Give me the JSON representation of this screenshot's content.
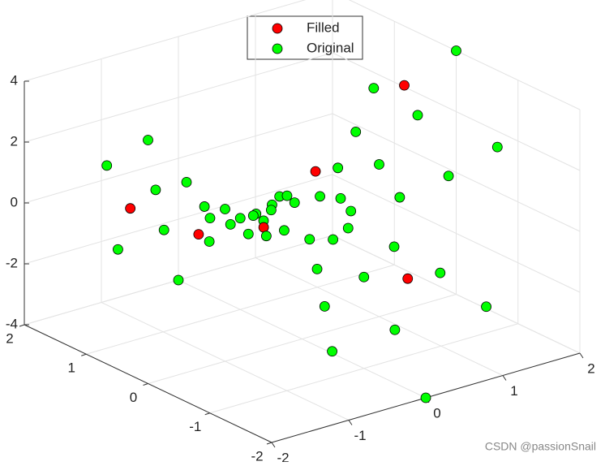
{
  "chart_data": {
    "type": "scatter3d",
    "xlim": [
      -2,
      2
    ],
    "ylim": [
      -2,
      2
    ],
    "zlim": [
      -4,
      4
    ],
    "xticks": [
      -2,
      -1,
      0,
      1,
      2
    ],
    "yticks": [
      -2,
      -1,
      0,
      1,
      2
    ],
    "zticks": [
      -4,
      -2,
      0,
      2,
      4
    ],
    "grid": true,
    "legend": "top",
    "watermark": "CSDN @passionSnail",
    "series": [
      {
        "name": "Filled",
        "color": "#ff0000",
        "x": [
          0.884,
          1.69,
          -0.705,
          -1.237,
          0.428,
          -0.3
        ],
        "y": [
          0.884,
          0.453,
          -0.257,
          1.237,
          -1.175,
          1.3
        ],
        "z": [
          0,
          2.652,
          0.431,
          0,
          -1.197,
          -1.6
        ]
      },
      {
        "name": "Original",
        "color": "#00ff00",
        "x": [
          0.5,
          0.433,
          0.25,
          0,
          -0.25,
          -0.433,
          -0.5,
          -0.433,
          -0.25,
          0,
          0.25,
          0.433,
          1,
          0.866,
          0.5,
          0,
          -0.5,
          -0.866,
          -1,
          -0.866,
          -0.5,
          0,
          0.5,
          0.866,
          1.5,
          1.299,
          0.75,
          0,
          -0.75,
          -1.299,
          -1.5,
          -1.299,
          -0.75,
          0,
          0.75,
          1.299,
          2,
          1.732,
          1,
          0,
          -1,
          -1.732,
          -2,
          -1.732,
          -1,
          0,
          1,
          1.732
        ],
        "y": [
          0,
          0.25,
          0.433,
          0.5,
          0.433,
          0.25,
          0,
          -0.25,
          -0.433,
          -0.5,
          -0.433,
          -0.25,
          0,
          0.5,
          0.866,
          1,
          0.866,
          0.5,
          0,
          -0.5,
          -0.866,
          -1,
          -0.866,
          -0.5,
          0,
          0.75,
          1.299,
          1.5,
          1.299,
          0.75,
          0,
          -0.75,
          -1.299,
          -1.5,
          -1.299,
          -0.75,
          0,
          1,
          1.732,
          2,
          1.732,
          1,
          0,
          -1,
          -1.732,
          -2,
          -1.732,
          -1
        ],
        "z": [
          0.25,
          0.125,
          -0.125,
          -0.25,
          -0.125,
          0.125,
          0.25,
          0.125,
          -0.125,
          -0.25,
          -0.125,
          0.125,
          1,
          0.5,
          -0.5,
          -1,
          -0.5,
          0.5,
          1,
          0.5,
          -0.5,
          -1,
          -0.5,
          0.5,
          2.25,
          1.125,
          -1.125,
          -2.25,
          -1.125,
          1.125,
          2.25,
          1.125,
          -1.125,
          -2.25,
          -1.125,
          1.125,
          4,
          2,
          -2,
          -4,
          -2,
          2,
          4,
          2,
          -2,
          -4,
          -2,
          2
        ]
      }
    ]
  }
}
